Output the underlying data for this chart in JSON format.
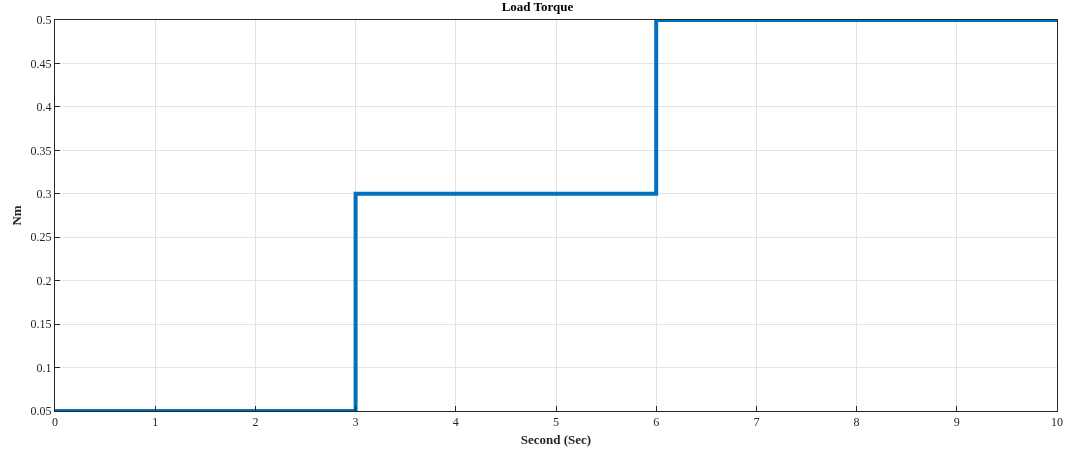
{
  "chart_data": {
    "type": "step",
    "title": "Load Torque",
    "xlabel": "Second (Sec)",
    "ylabel": "Nm",
    "x": [
      0,
      3,
      6,
      10
    ],
    "series": [
      {
        "color": "#0072bd",
        "values": [
          0.05,
          0.3,
          0.5,
          0.5
        ]
      }
    ],
    "xlim": [
      0,
      10
    ],
    "xticks": [
      0,
      1,
      2,
      3,
      4,
      5,
      6,
      7,
      8,
      9,
      10
    ],
    "ylim": [
      0.05,
      0.5
    ],
    "yticks": [
      0.05,
      0.1,
      0.15,
      0.2,
      0.25,
      0.3,
      0.35,
      0.4,
      0.45,
      0.5
    ],
    "grid": true,
    "marker": "none",
    "line_style": "solid"
  }
}
